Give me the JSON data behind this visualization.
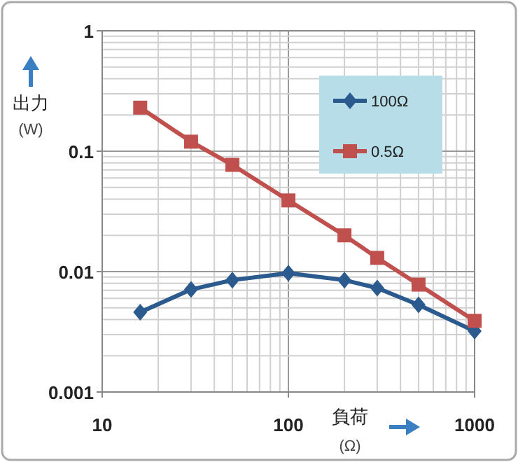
{
  "chart_data": {
    "type": "line",
    "xlabel": "負荷\n(Ω)",
    "ylabel": "出力\n(W)",
    "x": [
      16,
      30,
      50,
      100,
      200,
      300,
      500,
      1000
    ],
    "series": [
      {
        "name": "100Ω",
        "color": "#2b5a8e",
        "marker": "diamond",
        "values": [
          0.0046,
          0.0071,
          0.0085,
          0.0097,
          0.0085,
          0.0073,
          0.0053,
          0.0032
        ]
      },
      {
        "name": "0.5Ω",
        "color": "#c0504d",
        "marker": "square",
        "values": [
          0.23,
          0.12,
          0.077,
          0.039,
          0.02,
          0.013,
          0.0078,
          0.0039
        ]
      }
    ],
    "log": "xy",
    "xlim": [
      10,
      1000
    ],
    "ylim": [
      0.001,
      1
    ],
    "xticks": [
      10,
      100,
      1000
    ],
    "yticks": [
      0.001,
      0.01,
      0.1,
      1
    ],
    "grid": true,
    "legend": "top right"
  }
}
